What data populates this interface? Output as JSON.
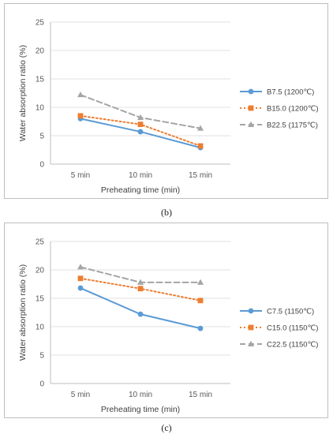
{
  "chart_data": [
    {
      "type": "line",
      "panel_label": "(b)",
      "xlabel": "Preheating time (min)",
      "ylabel": "Water absorption ratio  (%)",
      "categories": [
        "5 min",
        "10 min",
        "15 min"
      ],
      "ylim": [
        0,
        25
      ],
      "yticks": [
        0,
        5,
        10,
        15,
        20,
        25
      ],
      "grid": true,
      "legend_position": "right",
      "series": [
        {
          "name": "B7.5 (1200℃)",
          "values": [
            8.0,
            5.7,
            2.9
          ],
          "color": "#5b9bd5",
          "dash": "",
          "marker": "circle"
        },
        {
          "name": "B15.0 (1200℃)",
          "values": [
            8.5,
            7.0,
            3.2
          ],
          "color": "#ed7d31",
          "dash": "2 3",
          "marker": "square"
        },
        {
          "name": "B22.5 (1175℃)",
          "values": [
            12.2,
            8.2,
            6.3
          ],
          "color": "#a5a5a5",
          "dash": "7 4",
          "marker": "triangle"
        }
      ]
    },
    {
      "type": "line",
      "panel_label": "(c)",
      "xlabel": "Preheating time  (min)",
      "ylabel": "Water absorption ratio  (%)",
      "categories": [
        "5 min",
        "10 min",
        "15 min"
      ],
      "ylim": [
        0,
        25
      ],
      "yticks": [
        0,
        5,
        10,
        15,
        20,
        25
      ],
      "grid": true,
      "legend_position": "right",
      "series": [
        {
          "name": "C7.5 (1150℃)",
          "values": [
            16.8,
            12.2,
            9.7
          ],
          "color": "#5b9bd5",
          "dash": "",
          "marker": "circle"
        },
        {
          "name": "C15.0 (1150℃)",
          "values": [
            18.5,
            16.7,
            14.6
          ],
          "color": "#ed7d31",
          "dash": "2 3",
          "marker": "square"
        },
        {
          "name": "C22.5 (1150℃)",
          "values": [
            20.5,
            17.8,
            17.8
          ],
          "color": "#a5a5a5",
          "dash": "7 4",
          "marker": "triangle"
        }
      ]
    }
  ]
}
